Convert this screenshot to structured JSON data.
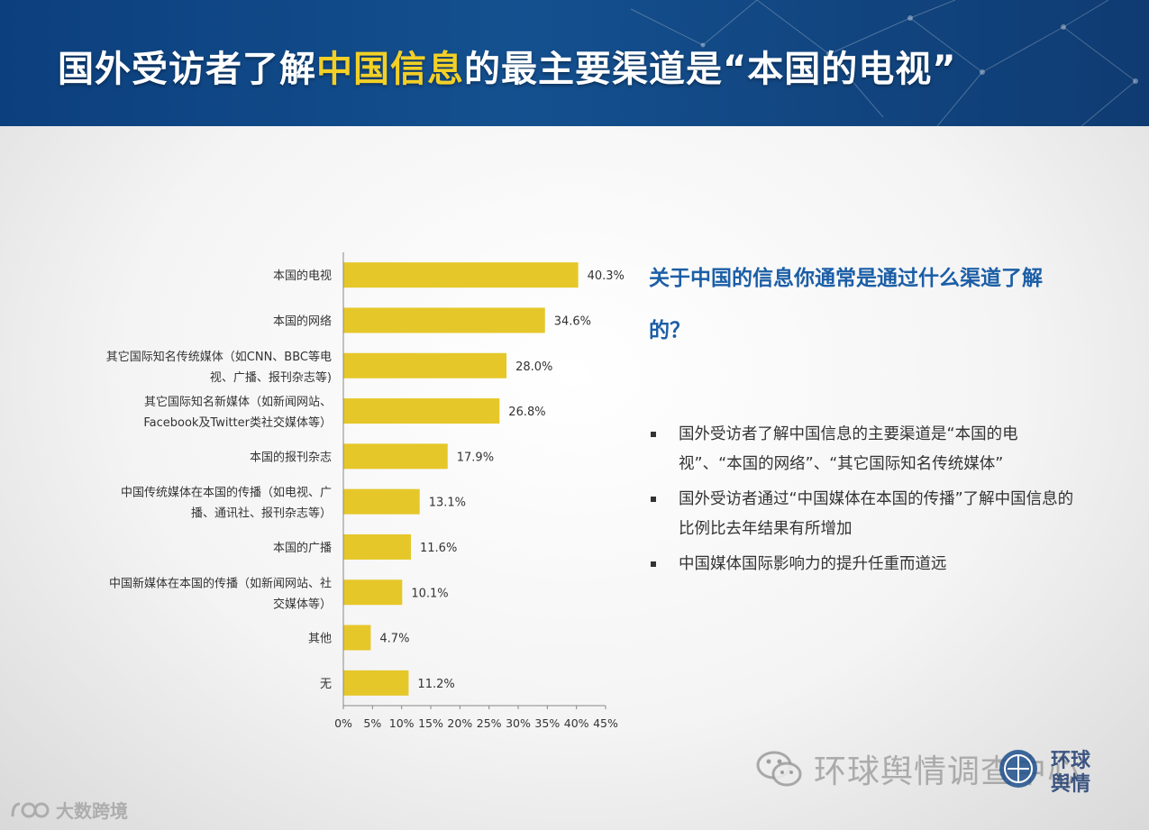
{
  "header": {
    "title_pre": "国外受访者了解",
    "title_highlight": "中国信息",
    "title_post": "的最主要渠道是“本国的电视”"
  },
  "colors": {
    "header_bg": "#124a8a",
    "title_highlight": "#f3d027",
    "bar": "#e5c72a",
    "question": "#1b5ea6"
  },
  "chart_data": {
    "type": "bar",
    "orientation": "horizontal",
    "categories": [
      [
        "本国的电视"
      ],
      [
        "本国的网络"
      ],
      [
        "其它国际知名传统媒体（如CNN、BBC等电",
        "视、广播、报刊杂志等)"
      ],
      [
        "其它国际知名新媒体（如新闻网站、",
        "Facebook及Twitter类社交媒体等）"
      ],
      [
        "本国的报刊杂志"
      ],
      [
        "中国传统媒体在本国的传播（如电视、广",
        "播、通讯社、报刊杂志等）"
      ],
      [
        "本国的广播"
      ],
      [
        "中国新媒体在本国的传播（如新闻网站、社",
        "交媒体等）"
      ],
      [
        "其他"
      ],
      [
        "无"
      ]
    ],
    "values": [
      40.3,
      34.6,
      28.0,
      26.8,
      17.9,
      13.1,
      11.6,
      10.1,
      4.7,
      11.2
    ],
    "value_labels": [
      "40.3%",
      "34.6%",
      "28.0%",
      "26.8%",
      "17.9%",
      "13.1%",
      "11.6%",
      "10.1%",
      "4.7%",
      "11.2%"
    ],
    "xlim": [
      0,
      45
    ],
    "xticks": [
      "0%",
      "5%",
      "10%",
      "15%",
      "20%",
      "25%",
      "30%",
      "35%",
      "40%",
      "45%"
    ],
    "grid": false,
    "legend": "none"
  },
  "side_panel": {
    "question": "关于中国的信息你通常是通过什么渠道了解的？",
    "bullets": [
      "国外受访者了解中国信息的主要渠道是“本国的电视”、“本国的网络”、“其它国际知名传统媒体”",
      "国外受访者通过“中国媒体在本国的传播”了解中国信息的比例比去年结果有所增加",
      "中国媒体国际影响力的提升任重而道远"
    ]
  },
  "footer": {
    "watermark": "环球舆情调查中心",
    "logo_text": "环球舆情",
    "brand": "大数跨境"
  }
}
